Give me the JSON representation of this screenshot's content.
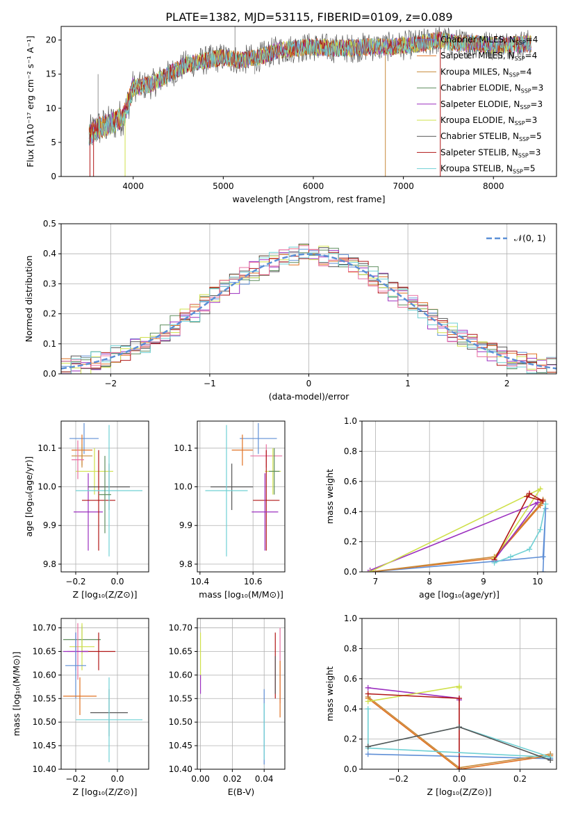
{
  "figure": {
    "title": "PLATE=1382, MJD=53115, FIBERID=0109, z=0.089"
  },
  "colors": {
    "Chabrier MILES": "#5f8fd6",
    "Salpeter MILES": "#e07020",
    "Kroupa MILES": "#c88a3a",
    "Chabrier ELODIE": "#5e8d5e",
    "Salpeter ELODIE": "#9b2fbf",
    "Kroupa ELODIE": "#cfe04a",
    "Chabrier STELIB": "#555555",
    "Salpeter STELIB": "#b01515",
    "Kroupa STELIB": "#6fd0d4",
    "Pink": "#e86fa0",
    "Normal": "#5b8fd6"
  },
  "chart_data": [
    {
      "type": "line",
      "id": "spectrum",
      "xlabel": "wavelength [Angstrom, rest frame]",
      "ylabel": "Flux [fλ10⁻¹⁷ erg cm⁻² s⁻¹ A⁻¹]",
      "xlim": [
        3200,
        8700
      ],
      "ylim": [
        0,
        22
      ],
      "xticks": [
        4000,
        5000,
        6000,
        7000,
        8000
      ],
      "yticks": [
        0,
        5,
        10,
        15,
        20
      ],
      "grid": false,
      "legend_position": "upper-right",
      "continuum": [
        [
          3500,
          6
        ],
        [
          3600,
          7
        ],
        [
          3700,
          7.5
        ],
        [
          3800,
          8
        ],
        [
          3900,
          9
        ],
        [
          3950,
          11
        ],
        [
          4000,
          13
        ],
        [
          4200,
          13.5
        ],
        [
          4400,
          15
        ],
        [
          4600,
          16.5
        ],
        [
          4800,
          17
        ],
        [
          5000,
          17.5
        ],
        [
          5200,
          17
        ],
        [
          5400,
          17.5
        ],
        [
          5600,
          18.5
        ],
        [
          5800,
          18.8
        ],
        [
          6000,
          19
        ],
        [
          6200,
          18.8
        ],
        [
          6400,
          18.8
        ],
        [
          6600,
          19
        ],
        [
          6800,
          19
        ],
        [
          7000,
          19.2
        ],
        [
          7200,
          19.5
        ],
        [
          7400,
          20
        ],
        [
          7600,
          19.5
        ],
        [
          7800,
          19.5
        ],
        [
          8000,
          19.2
        ],
        [
          8200,
          19.3
        ],
        [
          8400,
          19.5
        ]
      ],
      "spikes": [
        {
          "x": 5130,
          "y": 22
        },
        {
          "x": 3610,
          "y": 15
        },
        {
          "x": 5350,
          "y": 15
        }
      ],
      "dips": [
        {
          "x": 3520,
          "color": "Salpeter STELIB"
        },
        {
          "x": 3560,
          "color": "Salpeter STELIB"
        },
        {
          "x": 3910,
          "color": "Kroupa ELODIE"
        },
        {
          "x": 6800,
          "color": "Kroupa MILES"
        },
        {
          "x": 7410,
          "color": "Salpeter STELIB"
        }
      ],
      "series": [
        {
          "name": "Chabrier MILES, N",
          "sub": "SSP",
          "suffix": "=4",
          "color": "Chabrier MILES"
        },
        {
          "name": "Salpeter MILES, N",
          "sub": "SSP",
          "suffix": "=4",
          "color": "Salpeter MILES"
        },
        {
          "name": "Kroupa MILES, N",
          "sub": "SSP",
          "suffix": "=4",
          "color": "Kroupa MILES"
        },
        {
          "name": "Chabrier ELODIE, N",
          "sub": "SSP",
          "suffix": "=3",
          "color": "Chabrier ELODIE"
        },
        {
          "name": "Salpeter ELODIE, N",
          "sub": "SSP",
          "suffix": "=3",
          "color": "Salpeter ELODIE"
        },
        {
          "name": "Kroupa ELODIE, N",
          "sub": "SSP",
          "suffix": "=3",
          "color": "Kroupa ELODIE"
        },
        {
          "name": "Chabrier STELIB, N",
          "sub": "SSP",
          "suffix": "=5",
          "color": "Chabrier STELIB"
        },
        {
          "name": "Salpeter STELIB, N",
          "sub": "SSP",
          "suffix": "=3",
          "color": "Salpeter STELIB"
        },
        {
          "name": "Kroupa STELIB, N",
          "sub": "SSP",
          "suffix": "=5",
          "color": "Kroupa STELIB"
        }
      ]
    },
    {
      "type": "line",
      "id": "residuals",
      "xlabel": "(data-model)/error",
      "ylabel": "Normed distribution",
      "xlim": [
        -2.5,
        2.5
      ],
      "ylim": [
        0,
        0.5
      ],
      "xticks": [
        -2,
        -1,
        0,
        1,
        2
      ],
      "yticks": [
        0.0,
        0.1,
        0.2,
        0.3,
        0.4,
        0.5
      ],
      "grid": true,
      "legend_label": "𝒩(0, 1)",
      "bin_width": 0.1,
      "hist_colors": [
        "Chabrier MILES",
        "Salpeter MILES",
        "Chabrier ELODIE",
        "Salpeter ELODIE",
        "Kroupa ELODIE",
        "Chabrier STELIB",
        "Salpeter STELIB",
        "Kroupa STELIB",
        "Pink"
      ]
    },
    {
      "type": "scatter",
      "id": "age-vs-z",
      "xlabel": "Z [log₁₀(Z/Z⊙)]",
      "ylabel": "age  [log₁₀(age/yr)]",
      "xlim": [
        -0.27,
        0.15
      ],
      "ylim": [
        9.78,
        10.17
      ],
      "xticks": [
        -0.2,
        0.0
      ],
      "yticks": [
        9.8,
        9.9,
        10.0,
        10.1
      ],
      "grid": true,
      "points": [
        {
          "x": -0.16,
          "y": 10.125,
          "xerr": 0.07,
          "yerr": 0.04,
          "color": "Chabrier MILES"
        },
        {
          "x": -0.17,
          "y": 10.095,
          "xerr": 0.05,
          "yerr": 0.04,
          "color": "Salpeter MILES"
        },
        {
          "x": -0.17,
          "y": 10.08,
          "xerr": 0.05,
          "yerr": 0.03,
          "color": "Kroupa MILES"
        },
        {
          "x": -0.11,
          "y": 10.04,
          "xerr": 0.09,
          "yerr": 0.06,
          "color": "Kroupa ELODIE"
        },
        {
          "x": -0.19,
          "y": 10.07,
          "xerr": 0.03,
          "yerr": 0.05,
          "color": "Pink"
        },
        {
          "x": -0.14,
          "y": 9.935,
          "xerr": 0.07,
          "yerr": 0.1,
          "color": "Salpeter ELODIE"
        },
        {
          "x": -0.04,
          "y": 10.0,
          "xerr": 0.1,
          "yerr": 0.06,
          "color": "Chabrier STELIB"
        },
        {
          "x": -0.09,
          "y": 9.965,
          "xerr": 0.08,
          "yerr": 0.13,
          "color": "Salpeter STELIB"
        },
        {
          "x": -0.04,
          "y": 9.99,
          "xerr": 0.16,
          "yerr": 0.17,
          "color": "Kroupa STELIB"
        },
        {
          "x": -0.06,
          "y": 9.98,
          "xerr": 0.03,
          "yerr": 0.1,
          "color": "Chabrier ELODIE"
        }
      ]
    },
    {
      "type": "scatter",
      "id": "age-vs-mass",
      "xlabel": "mass [log₁₀(M/M⊙)]",
      "ylabel": "",
      "xlim": [
        10.39,
        10.72
      ],
      "ylim": [
        9.78,
        10.17
      ],
      "xticks": [
        10.4,
        10.6
      ],
      "yticks": [
        9.8,
        9.9,
        10.0,
        10.1
      ],
      "grid": true,
      "points": [
        {
          "x": 10.62,
          "y": 10.125,
          "xerr": 0.07,
          "yerr": 0.04,
          "color": "Chabrier MILES"
        },
        {
          "x": 10.56,
          "y": 10.095,
          "xerr": 0.04,
          "yerr": 0.04,
          "color": "Salpeter MILES"
        },
        {
          "x": 10.65,
          "y": 10.08,
          "xerr": 0.06,
          "yerr": 0.03,
          "color": "Pink"
        },
        {
          "x": 10.675,
          "y": 10.04,
          "xerr": 0.03,
          "yerr": 0.06,
          "color": "Kroupa ELODIE"
        },
        {
          "x": 10.68,
          "y": 10.04,
          "xerr": 0.02,
          "yerr": 0.06,
          "color": "Chabrier ELODIE"
        },
        {
          "x": 10.52,
          "y": 10.0,
          "xerr": 0.08,
          "yerr": 0.06,
          "color": "Chabrier STELIB"
        },
        {
          "x": 10.5,
          "y": 9.99,
          "xerr": 0.08,
          "yerr": 0.17,
          "color": "Kroupa STELIB"
        },
        {
          "x": 10.65,
          "y": 9.965,
          "xerr": 0.05,
          "yerr": 0.13,
          "color": "Salpeter STELIB"
        },
        {
          "x": 10.645,
          "y": 9.935,
          "xerr": 0.05,
          "yerr": 0.1,
          "color": "Salpeter ELODIE"
        }
      ]
    },
    {
      "type": "line",
      "id": "mass-weight-vs-age",
      "xlabel": "age  [log₁₀(age/yr)]",
      "ylabel": "mass weight",
      "xlim": [
        6.75,
        10.35
      ],
      "ylim": [
        0,
        1
      ],
      "xticks": [
        7,
        8,
        9,
        10
      ],
      "yticks": [
        0.0,
        0.2,
        0.4,
        0.6,
        0.8,
        1.0
      ],
      "grid": true,
      "series": [
        {
          "color": "Chabrier MILES",
          "x": [
            6.9,
            9.2,
            10.1,
            10.15,
            10.1
          ],
          "y": [
            0.0,
            0.07,
            0.1,
            0.42,
            0.0
          ]
        },
        {
          "color": "Salpeter MILES",
          "x": [
            6.9,
            9.2,
            10.05,
            10.1
          ],
          "y": [
            0.0,
            0.09,
            0.44,
            0.47
          ]
        },
        {
          "color": "Kroupa MILES",
          "x": [
            6.9,
            9.2,
            10.05,
            10.1
          ],
          "y": [
            0.0,
            0.1,
            0.45,
            0.48
          ]
        },
        {
          "color": "Salpeter ELODIE",
          "x": [
            6.9,
            10.0,
            9.2
          ],
          "y": [
            0.01,
            0.46,
            0.08
          ]
        },
        {
          "color": "Kroupa ELODIE",
          "x": [
            6.9,
            10.05,
            9.2
          ],
          "y": [
            0.0,
            0.55,
            0.09
          ]
        },
        {
          "color": "Salpeter STELIB",
          "x": [
            9.2,
            9.85,
            10.1,
            9.8
          ],
          "y": [
            0.08,
            0.52,
            0.47,
            0.5
          ]
        },
        {
          "color": "Kroupa STELIB",
          "x": [
            9.2,
            9.5,
            9.85,
            10.05,
            10.15
          ],
          "y": [
            0.06,
            0.1,
            0.15,
            0.28,
            0.45
          ]
        }
      ]
    },
    {
      "type": "scatter",
      "id": "mass-vs-z",
      "xlabel": "Z [log₁₀(Z/Z⊙)]",
      "ylabel": "mass [log₁₀(M/M⊙)]",
      "xlim": [
        -0.27,
        0.15
      ],
      "ylim": [
        10.4,
        10.72
      ],
      "xticks": [
        -0.2,
        0.0
      ],
      "yticks": [
        10.4,
        10.45,
        10.5,
        10.55,
        10.6,
        10.65,
        10.7
      ],
      "grid": true,
      "points": [
        {
          "x": -0.17,
          "y": 10.675,
          "xerr": 0.09,
          "yerr": 0.03,
          "color": "Chabrier ELODIE"
        },
        {
          "x": -0.17,
          "y": 10.66,
          "xerr": 0.06,
          "yerr": 0.05,
          "color": "Kroupa ELODIE"
        },
        {
          "x": -0.19,
          "y": 10.65,
          "xerr": 0.05,
          "yerr": 0.06,
          "color": "Pink"
        },
        {
          "x": -0.09,
          "y": 10.65,
          "xerr": 0.08,
          "yerr": 0.04,
          "color": "Salpeter STELIB"
        },
        {
          "x": -0.2,
          "y": 10.65,
          "xerr": 0.06,
          "yerr": 0.04,
          "color": "Salpeter ELODIE"
        },
        {
          "x": -0.2,
          "y": 10.62,
          "xerr": 0.05,
          "yerr": 0.07,
          "color": "Chabrier MILES"
        },
        {
          "x": -0.18,
          "y": 10.555,
          "xerr": 0.08,
          "yerr": 0.04,
          "color": "Salpeter MILES"
        },
        {
          "x": -0.04,
          "y": 10.52,
          "xerr": 0.09,
          "yerr": 0.05,
          "color": "Chabrier STELIB"
        },
        {
          "x": -0.04,
          "y": 10.505,
          "xerr": 0.16,
          "yerr": 0.09,
          "color": "Kroupa STELIB"
        }
      ]
    },
    {
      "type": "scatter",
      "id": "mass-vs-ebv",
      "xlabel": "E(B-V)",
      "ylabel": "",
      "xlim": [
        -0.002,
        0.053
      ],
      "ylim": [
        10.4,
        10.72
      ],
      "xticks": [
        0.0,
        0.02,
        0.04
      ],
      "yticks": [
        10.4,
        10.45,
        10.5,
        10.55,
        10.6,
        10.65,
        10.7
      ],
      "grid": true,
      "points": [
        {
          "x": 0.0,
          "y": 10.64,
          "xerr": 0,
          "yerr": 0.05,
          "color": "Kroupa ELODIE"
        },
        {
          "x": 0.0,
          "y": 10.58,
          "xerr": 0,
          "yerr": 0.02,
          "color": "Salpeter ELODIE"
        },
        {
          "x": 0.04,
          "y": 10.49,
          "xerr": 0,
          "yerr": 0.08,
          "color": "Chabrier MILES"
        },
        {
          "x": 0.04,
          "y": 10.48,
          "xerr": 0,
          "yerr": 0.06,
          "color": "Kroupa STELIB"
        },
        {
          "x": 0.047,
          "y": 10.62,
          "xerr": 0,
          "yerr": 0.07,
          "color": "Salpeter STELIB"
        },
        {
          "x": 0.047,
          "y": 10.6,
          "xerr": 0,
          "yerr": 0.04,
          "color": "Chabrier STELIB"
        },
        {
          "x": 0.05,
          "y": 10.62,
          "xerr": 0,
          "yerr": 0.08,
          "color": "Pink"
        },
        {
          "x": 0.05,
          "y": 10.57,
          "xerr": 0,
          "yerr": 0.06,
          "color": "Salpeter MILES"
        }
      ]
    },
    {
      "type": "line",
      "id": "mass-weight-vs-z",
      "xlabel": "Z [log₁₀(Z/Z⊙)]",
      "ylabel": "mass weight",
      "xlim": [
        -0.32,
        0.32
      ],
      "ylim": [
        0,
        1
      ],
      "xticks": [
        -0.2,
        0.0,
        0.2
      ],
      "yticks": [
        0.0,
        0.2,
        0.4,
        0.6,
        0.8,
        1.0
      ],
      "grid": true,
      "series": [
        {
          "color": "Chabrier MILES",
          "x": [
            -0.3,
            0.3,
            0.3
          ],
          "y": [
            0.1,
            0.07,
            0.1
          ]
        },
        {
          "color": "Salpeter MILES",
          "x": [
            -0.3,
            0.0,
            0.3
          ],
          "y": [
            0.47,
            0.0,
            0.09
          ]
        },
        {
          "color": "Kroupa MILES",
          "x": [
            -0.3,
            0.0,
            0.3
          ],
          "y": [
            0.48,
            0.01,
            0.1
          ]
        },
        {
          "color": "Salpeter ELODIE",
          "x": [
            -0.3,
            0.0,
            0.0
          ],
          "y": [
            0.54,
            0.47,
            0.46
          ]
        },
        {
          "color": "Kroupa ELODIE",
          "x": [
            -0.3,
            0.0,
            0.0
          ],
          "y": [
            0.45,
            0.55,
            0.54
          ]
        },
        {
          "color": "Salpeter STELIB",
          "x": [
            -0.3,
            0.0,
            0.0
          ],
          "y": [
            0.5,
            0.47,
            0.0
          ]
        },
        {
          "color": "Kroupa STELIB",
          "x": [
            -0.3,
            -0.3,
            0.0,
            0.3,
            -0.3
          ],
          "y": [
            0.4,
            0.15,
            0.28,
            0.08,
            0.14
          ]
        },
        {
          "color": "Chabrier STELIB",
          "x": [
            -0.3,
            0.0,
            0.3
          ],
          "y": [
            0.15,
            0.28,
            0.06
          ]
        }
      ]
    }
  ]
}
